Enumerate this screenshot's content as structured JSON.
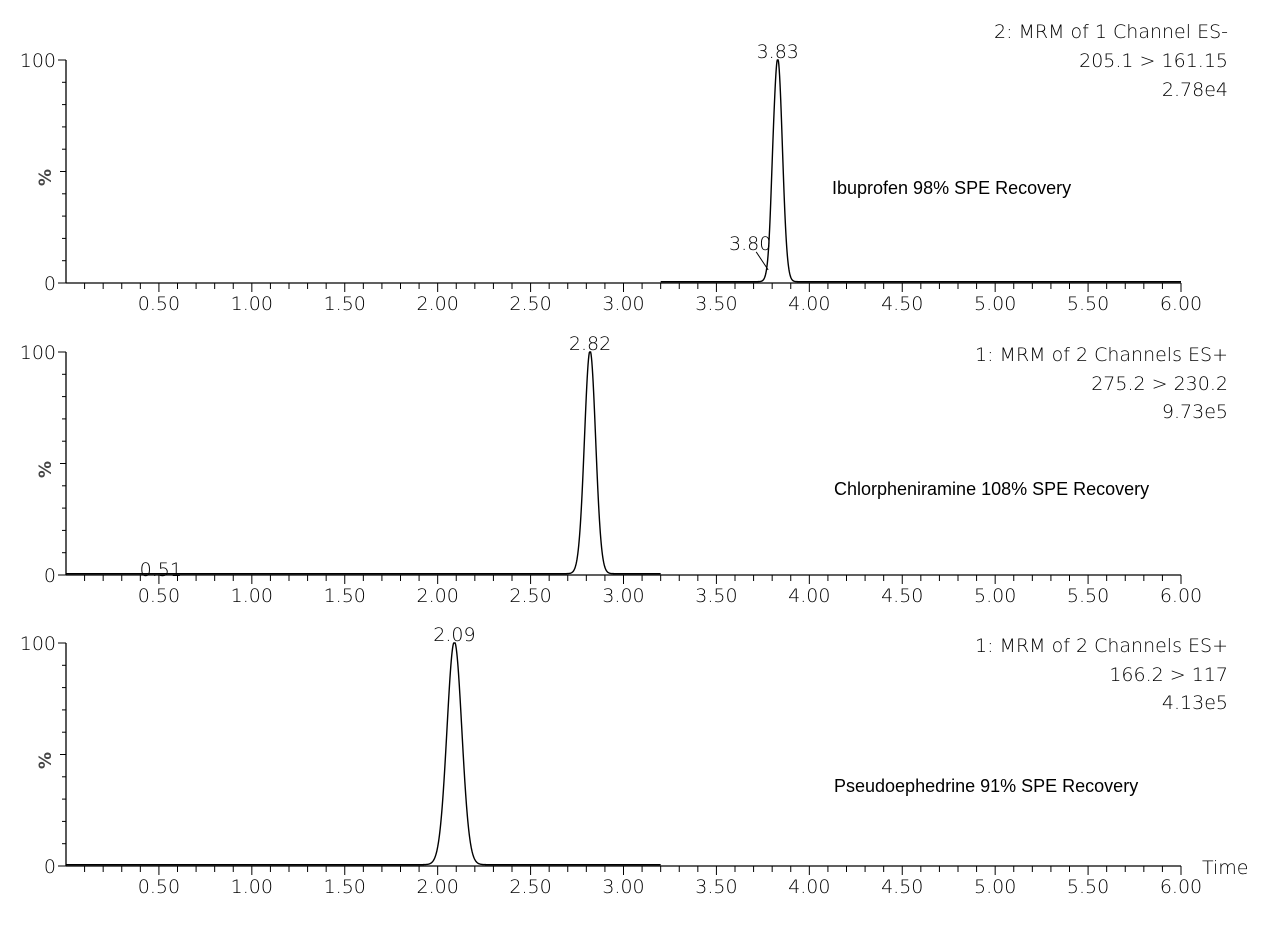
{
  "chart_data": [
    {
      "type": "line",
      "ylabel": "%",
      "y_ticks": [
        "0",
        "100"
      ],
      "ylim": [
        0,
        100
      ],
      "xlim": [
        0,
        6.0
      ],
      "x_ticks": [
        "0.50",
        "1.00",
        "1.50",
        "2.00",
        "2.50",
        "3.00",
        "3.50",
        "4.00",
        "4.50",
        "5.00",
        "5.50",
        "6.00"
      ],
      "header": [
        "2: MRM of 1 Channel ES-",
        "205.1 > 161.15",
        "2.78e4"
      ],
      "compound_label": "Ibuprofen 98% SPE Recovery",
      "trace_start": 3.2,
      "peaks": [
        {
          "rt": 3.83,
          "height": 100,
          "width": 0.025
        },
        {
          "rt": 3.8,
          "height": 5,
          "width": 0.01
        }
      ],
      "peak_labels": [
        {
          "text": "3.83",
          "x": 3.83,
          "y": 100
        },
        {
          "text": "3.80",
          "x": 3.8,
          "y": 5
        }
      ],
      "xlabel": ""
    },
    {
      "type": "line",
      "ylabel": "%",
      "y_ticks": [
        "0",
        "100"
      ],
      "ylim": [
        0,
        100
      ],
      "xlim": [
        0,
        6.0
      ],
      "x_ticks": [
        "0.50",
        "1.00",
        "1.50",
        "2.00",
        "2.50",
        "3.00",
        "3.50",
        "4.00",
        "4.50",
        "5.00",
        "5.50",
        "6.00"
      ],
      "header": [
        "1: MRM of 2 Channels ES+",
        "275.2 > 230.2",
        "9.73e5"
      ],
      "compound_label": "Chlorpheniramine 108% SPE Recovery",
      "trace_start": 0,
      "trace_end": 3.2,
      "peaks": [
        {
          "rt": 2.82,
          "height": 100,
          "width": 0.03
        }
      ],
      "peak_labels": [
        {
          "text": "2.82",
          "x": 2.82,
          "y": 100
        },
        {
          "text": "0.51",
          "x": 0.51,
          "y": 0
        }
      ],
      "xlabel": ""
    },
    {
      "type": "line",
      "ylabel": "%",
      "y_ticks": [
        "0",
        "100"
      ],
      "ylim": [
        0,
        100
      ],
      "xlim": [
        0,
        6.0
      ],
      "x_ticks": [
        "0.50",
        "1.00",
        "1.50",
        "2.00",
        "2.50",
        "3.00",
        "3.50",
        "4.00",
        "4.50",
        "5.00",
        "5.50",
        "6.00"
      ],
      "header": [
        "1: MRM of 2 Channels ES+",
        "166.2 > 117",
        "4.13e5"
      ],
      "compound_label": "Pseudoephedrine 91% SPE Recovery",
      "trace_start": 0,
      "trace_end": 3.2,
      "peaks": [
        {
          "rt": 2.09,
          "height": 100,
          "width": 0.04
        }
      ],
      "peak_labels": [
        {
          "text": "2.09",
          "x": 2.09,
          "y": 100
        }
      ],
      "xlabel": "Time"
    }
  ]
}
